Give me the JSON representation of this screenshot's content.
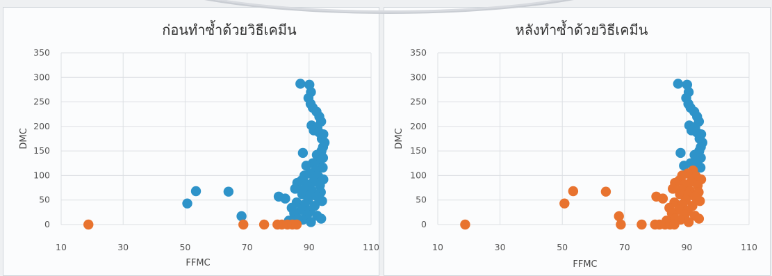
{
  "colors": {
    "blue": "#2e93c9",
    "orange": "#e8732f"
  },
  "chart_data": [
    {
      "type": "scatter",
      "title": "ก่อนทำซ้ำด้วยวิธีเคมีน",
      "xlabel": "FFMC",
      "ylabel": "DMC",
      "xlim": [
        10,
        110
      ],
      "ylim": [
        0,
        350
      ],
      "xticks": [
        "10",
        "30",
        "50",
        "70",
        "90",
        "110"
      ],
      "yticks": [
        "0",
        "50",
        "100",
        "150",
        "200",
        "250",
        "300",
        "350"
      ],
      "grid": true,
      "series": [
        {
          "color": "#2e93c9",
          "points": [
            [
              87.2,
              287
            ],
            [
              90.1,
              285
            ],
            [
              90.6,
              270
            ],
            [
              89.8,
              258
            ],
            [
              90.5,
              246
            ],
            [
              91.2,
              238
            ],
            [
              92.4,
              230
            ],
            [
              93.3,
              220
            ],
            [
              93.9,
              210
            ],
            [
              90.8,
              202
            ],
            [
              92.7,
              199
            ],
            [
              91.5,
              192
            ],
            [
              93.2,
              188
            ],
            [
              94.6,
              184
            ],
            [
              94.1,
              175
            ],
            [
              95.0,
              167
            ],
            [
              94.5,
              158
            ],
            [
              94.0,
              150
            ],
            [
              88.0,
              146
            ],
            [
              92.5,
              142
            ],
            [
              94.5,
              136
            ],
            [
              93.4,
              128
            ],
            [
              91.2,
              125
            ],
            [
              89.1,
              120
            ],
            [
              94.4,
              116
            ],
            [
              92.0,
              110
            ],
            [
              90.3,
              104
            ],
            [
              88.5,
              100
            ],
            [
              93.0,
              98
            ],
            [
              94.6,
              92
            ],
            [
              87.6,
              90
            ],
            [
              91.4,
              87
            ],
            [
              86.2,
              85
            ],
            [
              89.3,
              82
            ],
            [
              93.5,
              80
            ],
            [
              85.5,
              73
            ],
            [
              88.4,
              71
            ],
            [
              91.0,
              68
            ],
            [
              93.8,
              66
            ],
            [
              87.8,
              62
            ],
            [
              90.4,
              60
            ],
            [
              92.6,
              57
            ],
            [
              80.2,
              57
            ],
            [
              82.3,
              53
            ],
            [
              89.7,
              50
            ],
            [
              94.2,
              48
            ],
            [
              86.0,
              45
            ],
            [
              88.6,
              41
            ],
            [
              91.8,
              38
            ],
            [
              84.4,
              34
            ],
            [
              87.5,
              30
            ],
            [
              90.3,
              28
            ],
            [
              85.2,
              23
            ],
            [
              89.4,
              20
            ],
            [
              92.6,
              18
            ],
            [
              93.9,
              12
            ],
            [
              88.0,
              10
            ],
            [
              83.5,
              8
            ],
            [
              86.3,
              12
            ],
            [
              90.6,
              5
            ],
            [
              50.7,
              43
            ],
            [
              53.5,
              68
            ],
            [
              64.0,
              67
            ],
            [
              68.2,
              17
            ]
          ]
        },
        {
          "color": "#e8732f",
          "points": [
            [
              18.8,
              0
            ],
            [
              68.8,
              0
            ],
            [
              75.5,
              0
            ],
            [
              79.8,
              0
            ],
            [
              81.2,
              0
            ],
            [
              83.0,
              0
            ],
            [
              84.6,
              0
            ],
            [
              86.0,
              0
            ]
          ]
        }
      ]
    },
    {
      "type": "scatter",
      "title": "หลังทำซ้ำด้วยวิธีเคมีน",
      "xlabel": "FFMC",
      "ylabel": "DMC",
      "xlim": [
        10,
        110
      ],
      "ylim": [
        0,
        350
      ],
      "xticks": [
        "10",
        "30",
        "50",
        "70",
        "90",
        "110"
      ],
      "yticks": [
        "0",
        "50",
        "100",
        "150",
        "200",
        "250",
        "300",
        "350"
      ],
      "grid": true,
      "series": [
        {
          "color": "#2e93c9",
          "points": [
            [
              87.2,
              287
            ],
            [
              90.1,
              285
            ],
            [
              90.6,
              270
            ],
            [
              89.8,
              258
            ],
            [
              90.5,
              246
            ],
            [
              91.2,
              238
            ],
            [
              92.4,
              230
            ],
            [
              93.3,
              220
            ],
            [
              93.9,
              210
            ],
            [
              90.8,
              202
            ],
            [
              92.7,
              199
            ],
            [
              91.5,
              192
            ],
            [
              93.2,
              188
            ],
            [
              94.6,
              184
            ],
            [
              94.1,
              175
            ],
            [
              95.0,
              167
            ],
            [
              94.5,
              158
            ],
            [
              94.0,
              150
            ],
            [
              88.0,
              146
            ],
            [
              92.5,
              142
            ],
            [
              94.5,
              136
            ],
            [
              93.4,
              128
            ],
            [
              91.2,
              125
            ],
            [
              89.1,
              120
            ],
            [
              94.4,
              116
            ]
          ]
        },
        {
          "color": "#e8732f",
          "points": [
            [
              92.0,
              110
            ],
            [
              90.3,
              104
            ],
            [
              88.5,
              100
            ],
            [
              93.0,
              98
            ],
            [
              94.6,
              92
            ],
            [
              87.6,
              90
            ],
            [
              91.4,
              87
            ],
            [
              86.2,
              85
            ],
            [
              89.3,
              82
            ],
            [
              93.5,
              80
            ],
            [
              85.5,
              73
            ],
            [
              88.4,
              71
            ],
            [
              91.0,
              68
            ],
            [
              93.8,
              66
            ],
            [
              87.8,
              62
            ],
            [
              90.4,
              60
            ],
            [
              92.6,
              57
            ],
            [
              80.2,
              57
            ],
            [
              82.3,
              53
            ],
            [
              89.7,
              50
            ],
            [
              94.2,
              48
            ],
            [
              86.0,
              45
            ],
            [
              88.6,
              41
            ],
            [
              91.8,
              38
            ],
            [
              84.4,
              34
            ],
            [
              87.5,
              30
            ],
            [
              90.3,
              28
            ],
            [
              85.2,
              23
            ],
            [
              89.4,
              20
            ],
            [
              92.6,
              18
            ],
            [
              93.9,
              12
            ],
            [
              88.0,
              10
            ],
            [
              83.5,
              8
            ],
            [
              86.3,
              12
            ],
            [
              90.6,
              5
            ],
            [
              50.7,
              43
            ],
            [
              53.5,
              68
            ],
            [
              64.0,
              67
            ],
            [
              68.2,
              17
            ],
            [
              18.8,
              0
            ],
            [
              68.8,
              0
            ],
            [
              75.5,
              0
            ],
            [
              79.8,
              0
            ],
            [
              81.2,
              0
            ],
            [
              83.0,
              0
            ],
            [
              84.6,
              0
            ],
            [
              86.0,
              0
            ]
          ]
        }
      ]
    }
  ]
}
